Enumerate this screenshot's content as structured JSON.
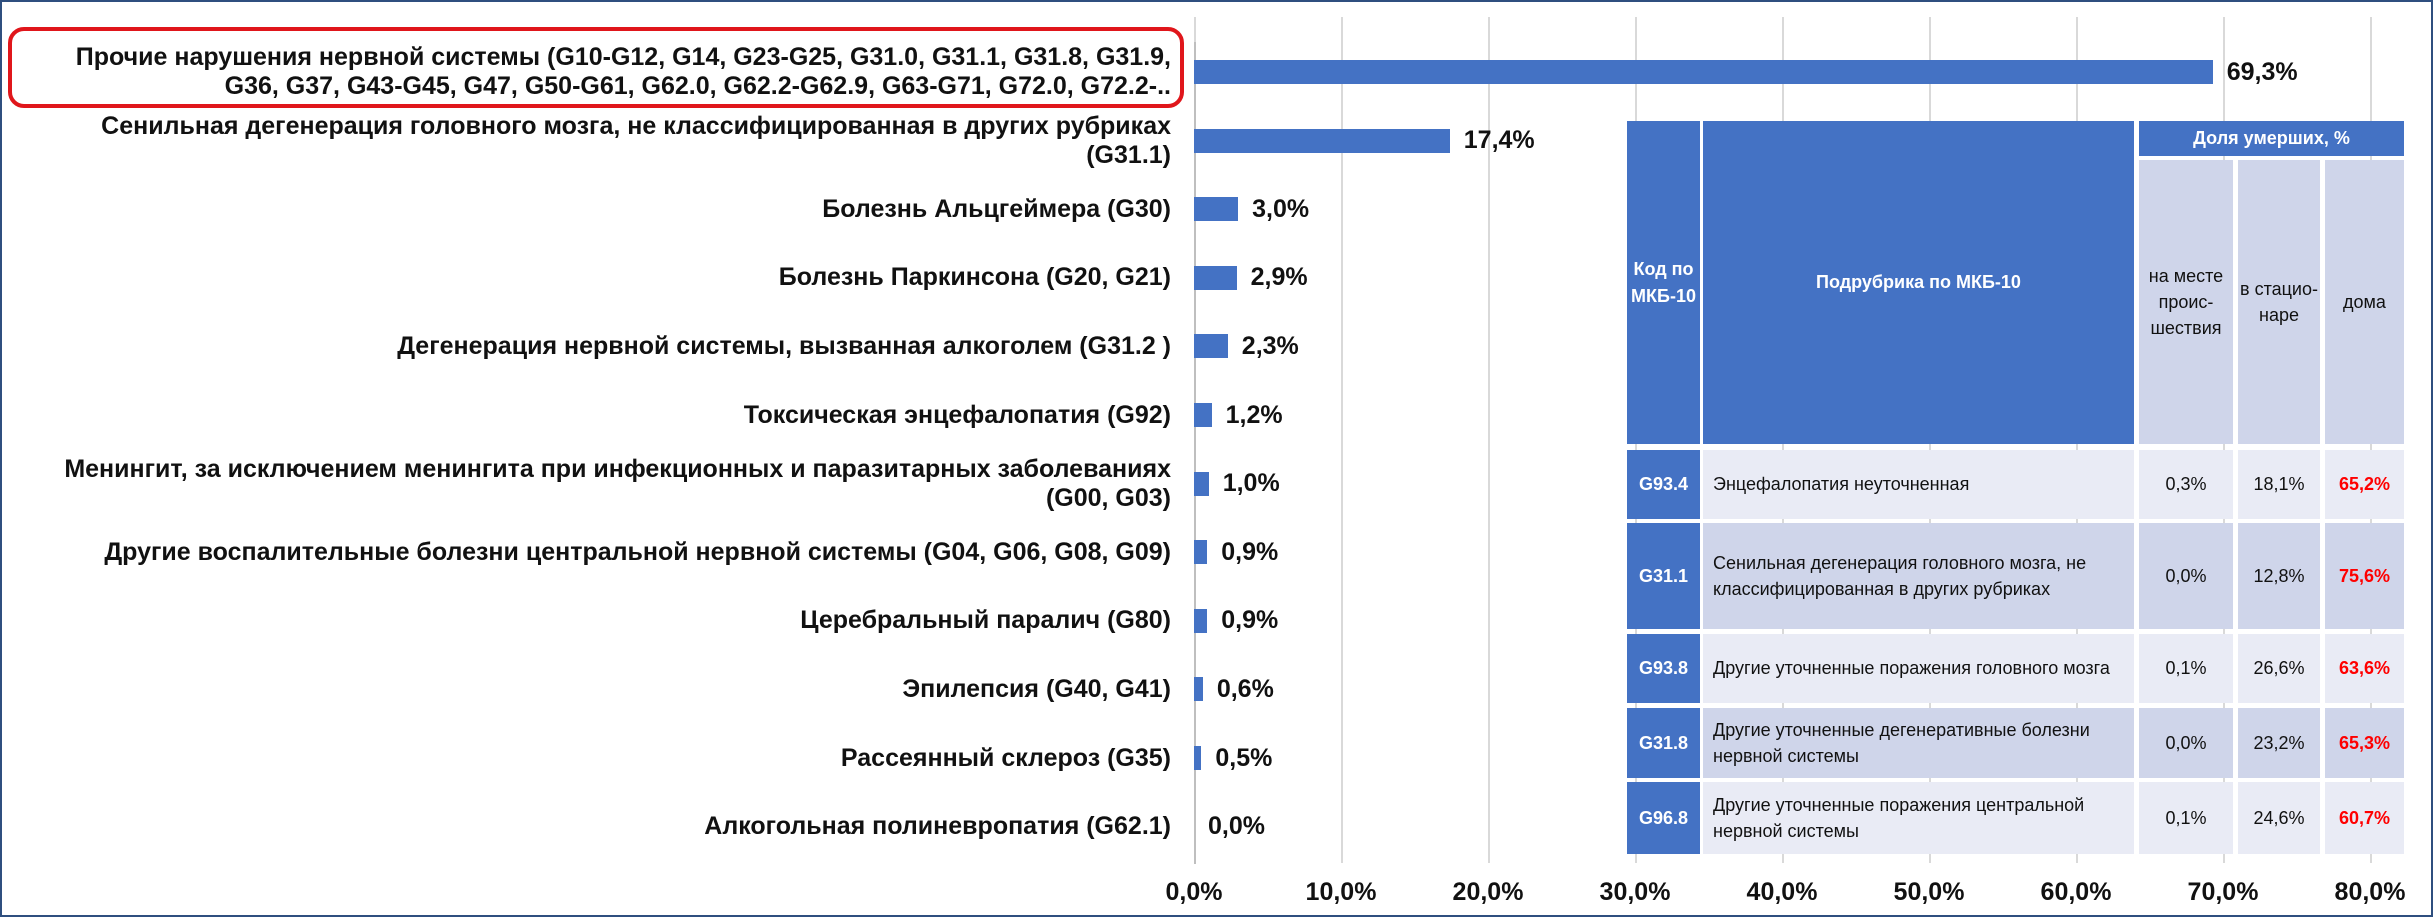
{
  "chart_data": {
    "type": "bar",
    "orientation": "horizontal",
    "categories": [
      "Прочие нарушения нервной системы (G10-G12, G14, G23-G25, G31.0, G31.1, G31.8, G31.9, G36, G37, G43-G45, G47, G50-G61, G62.0, G62.2-G62.9, G63-G71, G72.0, G72.2-..",
      "Сенильная дегенерация головного мозга, не классифицированная в других рубриках (G31.1)",
      "Болезнь Альцгеймера (G30)",
      "Болезнь Паркинсона (G20, G21)",
      "Дегенерация нервной системы, вызванная алкоголем (G31.2 )",
      "Токсическая энцефалопатия (G92)",
      "Менингит, за исключением менингита при инфекционных и паразитарных заболеваниях (G00, G03)",
      "Другие воспалительные болезни центральной нервной системы (G04, G06, G08, G09)",
      "Церебральный паралич (G80)",
      "Эпилепсия (G40, G41)",
      "Рассеянный склероз (G35)",
      "Алкогольная полиневропатия (G62.1)"
    ],
    "values": [
      69.3,
      17.4,
      3.0,
      2.9,
      2.3,
      1.2,
      1.0,
      0.9,
      0.9,
      0.6,
      0.5,
      0.0
    ],
    "value_labels": [
      "69,3%",
      "17,4%",
      "3,0%",
      "2,9%",
      "2,3%",
      "1,2%",
      "1,0%",
      "0,9%",
      "0,9%",
      "0,6%",
      "0,5%",
      "0,0%"
    ],
    "color": "#4472c4",
    "xlim": [
      0,
      80
    ],
    "xticks": [
      {
        "value": 0,
        "label": "0,0%"
      },
      {
        "value": 10,
        "label": "10,0%"
      },
      {
        "value": 20,
        "label": "20,0%"
      },
      {
        "value": 30,
        "label": "30,0%"
      },
      {
        "value": 40,
        "label": "40,0%"
      },
      {
        "value": 50,
        "label": "50,0%"
      },
      {
        "value": 60,
        "label": "60,0%"
      },
      {
        "value": 70,
        "label": "70,0%"
      },
      {
        "value": 80,
        "label": "80,0%"
      }
    ],
    "grid": true
  },
  "table": {
    "group_header": "Доля умерших, %",
    "headers": [
      "Код по МКБ-10",
      "Подрубрика по МКБ-10",
      "на месте проис-шествия",
      "в стацио-наре",
      "дома"
    ],
    "rows": [
      [
        "G93.4",
        "Энцефалопатия неуточненная",
        "0,3%",
        "18,1%",
        "65,2%"
      ],
      [
        "G31.1",
        "Сенильная дегенерация головного мозга, не классифицированная в других рубриках",
        "0,0%",
        "12,8%",
        "75,6%"
      ],
      [
        "G93.8",
        "Другие уточненные поражения головного мозга",
        "0,1%",
        "26,6%",
        "63,6%"
      ],
      [
        "G31.8",
        "Другие уточненные дегенеративные болезни нервной системы",
        "0,0%",
        "23,2%",
        "65,3%"
      ],
      [
        "G96.8",
        "Другие уточненные поражения центральной нервной системы",
        "0,1%",
        "24,6%",
        "60,7%"
      ]
    ]
  }
}
